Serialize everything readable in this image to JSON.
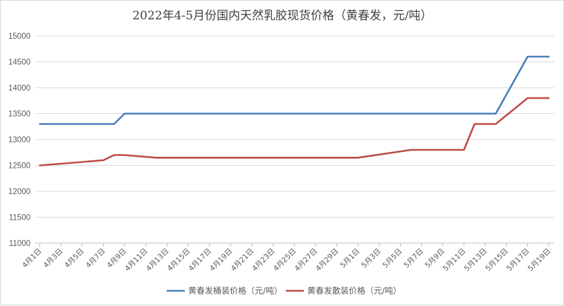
{
  "chart_data": {
    "type": "line",
    "title": "2022年4-5月份国内天然乳胶现货价格（黄春发，元/吨）",
    "xlabel": "",
    "ylabel": "",
    "ylim": [
      11000,
      15000
    ],
    "yticks": [
      11000,
      11500,
      12000,
      12500,
      13000,
      13500,
      14000,
      14500,
      15000
    ],
    "grid": true,
    "legend_position": "bottom",
    "categories": [
      "4月1日",
      "4月3日",
      "4月5日",
      "4月7日",
      "4月9日",
      "4月11日",
      "4月13日",
      "4月15日",
      "4月17日",
      "4月19日",
      "4月21日",
      "4月23日",
      "4月25日",
      "4月27日",
      "4月29日",
      "5月1日",
      "5月3日",
      "5月5日",
      "5月7日",
      "5月9日",
      "5月11日",
      "5月13日",
      "5月15日",
      "5月17日",
      "5月19日"
    ],
    "series": [
      {
        "name": "黄春发桶装价格（元/吨）",
        "color": "#4a7ebb",
        "points": [
          {
            "x": "4月1日",
            "y": 13300
          },
          {
            "x": "4月7日",
            "y": 13300
          },
          {
            "x": "4月8日",
            "y": 13300
          },
          {
            "x": "4月9日",
            "y": 13500
          },
          {
            "x": "5月13日",
            "y": 13500
          },
          {
            "x": "5月14日",
            "y": 13500
          },
          {
            "x": "5月17日",
            "y": 14600
          },
          {
            "x": "5月19日",
            "y": 14600
          }
        ]
      },
      {
        "name": "黄春发散装价格（元/吨）",
        "color": "#be4b48",
        "points": [
          {
            "x": "4月1日",
            "y": 12500
          },
          {
            "x": "4月7日",
            "y": 12600
          },
          {
            "x": "4月8日",
            "y": 12700
          },
          {
            "x": "4月9日",
            "y": 12700
          },
          {
            "x": "4月12日",
            "y": 12650
          },
          {
            "x": "5月1日",
            "y": 12650
          },
          {
            "x": "5月6日",
            "y": 12800
          },
          {
            "x": "5月11日",
            "y": 12800
          },
          {
            "x": "5月12日",
            "y": 13300
          },
          {
            "x": "5月14日",
            "y": 13300
          },
          {
            "x": "5月17日",
            "y": 13800
          },
          {
            "x": "5月19日",
            "y": 13800
          }
        ]
      }
    ]
  }
}
